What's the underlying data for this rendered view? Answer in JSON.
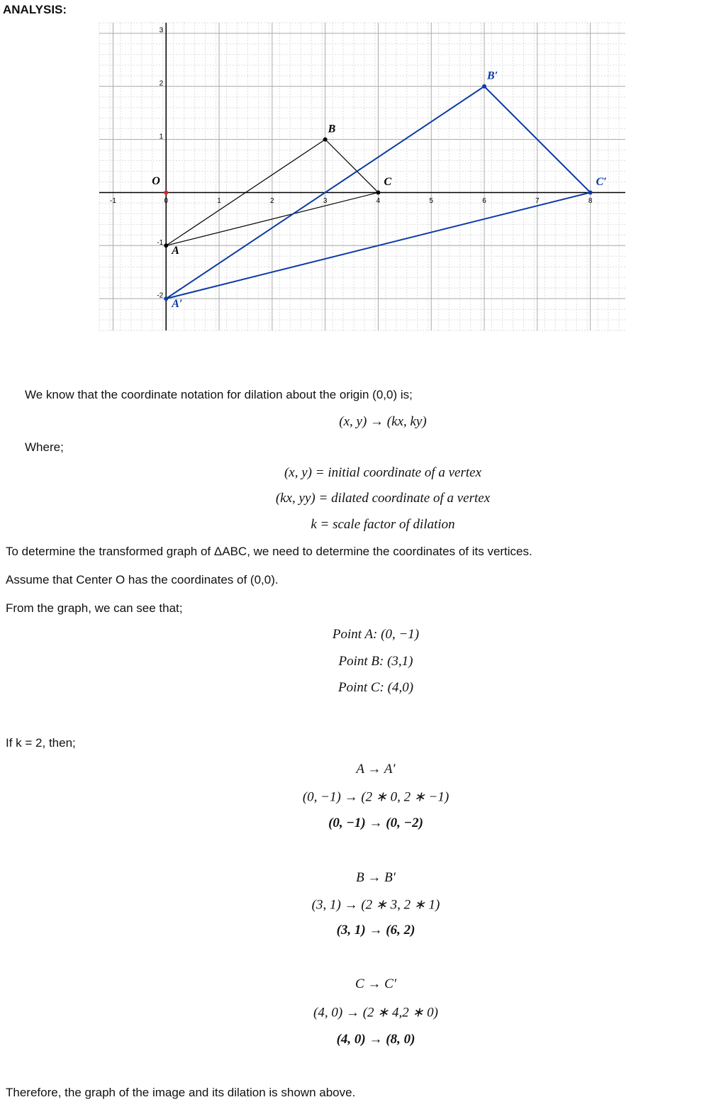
{
  "header": {
    "title": "ANALYSIS:"
  },
  "graph": {
    "xlim": [
      -1.26,
      8.66
    ],
    "ylim": [
      -2.6,
      3.2
    ],
    "xticks": [
      -1,
      0,
      1,
      2,
      3,
      4,
      5,
      6,
      7,
      8
    ],
    "yticks": [
      -2,
      -1,
      1,
      2,
      3
    ],
    "origin_label": "O",
    "original": {
      "color": "#000000",
      "points": [
        {
          "label": "A",
          "x": 0,
          "y": -1
        },
        {
          "label": "B",
          "x": 3,
          "y": 1
        },
        {
          "label": "C",
          "x": 4,
          "y": 0
        }
      ]
    },
    "image": {
      "color": "#0a3aa8",
      "points": [
        {
          "label": "A′",
          "x": 0,
          "y": -2
        },
        {
          "label": "B′",
          "x": 6,
          "y": 2
        },
        {
          "label": "C′",
          "x": 8,
          "y": 0
        }
      ]
    }
  },
  "lines": [
    "We know that the coordinate notation for dilation about the origin (0,0) is;",
    "(x, y) → (kx, ky)",
    "Where;",
    "(x, y) = initial coordinate of a vertex",
    "(kx, yy) = dilated coordinate of a vertex",
    "k = scale factor of dilation",
    "To determine the transformed graph of ΔABC, we need to determine the coordinates of its vertices.",
    "Assume that Center O has the coordinates of (0,0).",
    "From the graph, we can see that;",
    "Point A: (0, −1)",
    "Point B: (3,1)",
    "Point C: (4,0)",
    "If k = 2, then;",
    "A → A′",
    "(0, −1) → (2 ∗ 0, 2 ∗ −1)",
    "(0, −1) → (0, −2)",
    "B → B′",
    "(3, 1) → (2 ∗ 3, 2 ∗ 1)",
    "(3, 1) → (6, 2)",
    "C → C′",
    "(4, 0) → (2 ∗ 4,2 ∗ 0)",
    "(4, 0) → (8, 0)",
    "Therefore, the graph of the image and its dilation is shown above."
  ]
}
